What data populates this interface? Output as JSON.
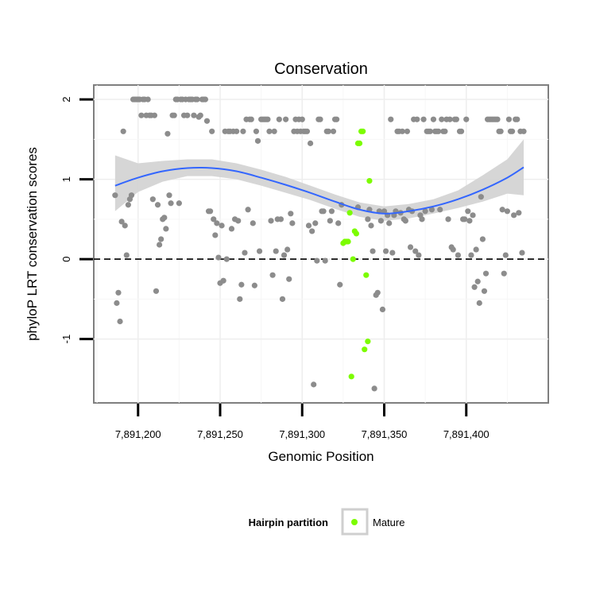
{
  "chart_data": {
    "type": "scatter",
    "title": "Conservation",
    "xlabel": "Genomic Position",
    "ylabel": "phyloP LRT conservation scores",
    "xlim": [
      7891173,
      7891450
    ],
    "ylim": [
      -1.8,
      2.18
    ],
    "x_ticks": [
      7891200,
      7891250,
      7891300,
      7891350,
      7891400
    ],
    "x_tick_labels": [
      "7,891,200",
      "7,891,250",
      "7,891,300",
      "7,891,350",
      "7,891,400"
    ],
    "y_ticks": [
      -1,
      0,
      1,
      2
    ],
    "y_tick_labels": [
      "-1",
      "0",
      "1",
      "2"
    ],
    "reference_line": {
      "y": 0,
      "style": "dashed"
    },
    "grid": true,
    "legend": {
      "title": "Hairpin partition",
      "position": "bottom",
      "entries": [
        {
          "label": "Mature",
          "color": "#7cfc00"
        }
      ]
    },
    "colors": {
      "other": "#8c8c8c",
      "mature": "#7cfc00",
      "smooth": "#3366ff",
      "band": "#d2d2d2"
    },
    "series": [
      {
        "color": "#8c8c8c",
        "points": [
          [
            7891186,
            0.8
          ],
          [
            7891187,
            -0.55
          ],
          [
            7891188,
            -0.42
          ],
          [
            7891189,
            -0.78
          ],
          [
            7891190,
            0.47
          ],
          [
            7891191,
            1.6
          ],
          [
            7891192,
            0.42
          ],
          [
            7891193,
            0.05
          ],
          [
            7891194,
            0.68
          ],
          [
            7891195,
            0.75
          ],
          [
            7891196,
            0.8
          ],
          [
            7891197,
            2.0
          ],
          [
            7891198,
            2.0
          ],
          [
            7891199,
            2.0
          ],
          [
            7891200,
            2.0
          ],
          [
            7891201,
            2.0
          ],
          [
            7891202,
            1.8
          ],
          [
            7891203,
            2.0
          ],
          [
            7891204,
            2.0
          ],
          [
            7891205,
            1.8
          ],
          [
            7891206,
            2.0
          ],
          [
            7891207,
            1.8
          ],
          [
            7891208,
            1.8
          ],
          [
            7891209,
            0.75
          ],
          [
            7891210,
            1.8
          ],
          [
            7891211,
            -0.4
          ],
          [
            7891212,
            0.68
          ],
          [
            7891213,
            0.18
          ],
          [
            7891214,
            0.25
          ],
          [
            7891215,
            0.5
          ],
          [
            7891216,
            0.52
          ],
          [
            7891217,
            0.38
          ],
          [
            7891218,
            1.57
          ],
          [
            7891219,
            0.8
          ],
          [
            7891220,
            0.7
          ],
          [
            7891221,
            1.8
          ],
          [
            7891222,
            1.8
          ],
          [
            7891223,
            2.0
          ],
          [
            7891224,
            2.0
          ],
          [
            7891225,
            0.7
          ],
          [
            7891226,
            2.0
          ],
          [
            7891227,
            2.0
          ],
          [
            7891228,
            1.8
          ],
          [
            7891229,
            2.0
          ],
          [
            7891230,
            1.8
          ],
          [
            7891231,
            2.0
          ],
          [
            7891232,
            2.0
          ],
          [
            7891233,
            2.0
          ],
          [
            7891234,
            1.8
          ],
          [
            7891235,
            2.0
          ],
          [
            7891236,
            2.0
          ],
          [
            7891237,
            1.78
          ],
          [
            7891238,
            1.8
          ],
          [
            7891239,
            2.0
          ],
          [
            7891240,
            2.0
          ],
          [
            7891241,
            2.0
          ],
          [
            7891242,
            1.73
          ],
          [
            7891243,
            0.6
          ],
          [
            7891244,
            0.6
          ],
          [
            7891245,
            1.6
          ],
          [
            7891246,
            0.5
          ],
          [
            7891247,
            0.3
          ],
          [
            7891248,
            0.45
          ],
          [
            7891249,
            0.02
          ],
          [
            7891250,
            -0.3
          ],
          [
            7891251,
            0.42
          ],
          [
            7891252,
            -0.27
          ],
          [
            7891253,
            1.6
          ],
          [
            7891254,
            0.0
          ],
          [
            7891255,
            1.6
          ],
          [
            7891256,
            1.6
          ],
          [
            7891257,
            0.38
          ],
          [
            7891258,
            1.6
          ],
          [
            7891259,
            0.5
          ],
          [
            7891260,
            1.6
          ],
          [
            7891261,
            0.48
          ],
          [
            7891262,
            -0.5
          ],
          [
            7891263,
            -0.32
          ],
          [
            7891264,
            1.6
          ],
          [
            7891265,
            0.08
          ],
          [
            7891266,
            1.75
          ],
          [
            7891267,
            0.62
          ],
          [
            7891268,
            1.75
          ],
          [
            7891269,
            1.75
          ],
          [
            7891270,
            0.45
          ],
          [
            7891271,
            -0.33
          ],
          [
            7891272,
            1.6
          ],
          [
            7891273,
            1.48
          ],
          [
            7891274,
            0.1
          ],
          [
            7891275,
            1.75
          ],
          [
            7891276,
            1.75
          ],
          [
            7891277,
            1.75
          ],
          [
            7891278,
            1.75
          ],
          [
            7891279,
            1.75
          ],
          [
            7891280,
            1.6
          ],
          [
            7891281,
            0.48
          ],
          [
            7891282,
            -0.2
          ],
          [
            7891283,
            1.6
          ],
          [
            7891284,
            0.1
          ],
          [
            7891285,
            0.5
          ],
          [
            7891286,
            1.75
          ],
          [
            7891287,
            0.5
          ],
          [
            7891288,
            -0.5
          ],
          [
            7891289,
            0.05
          ],
          [
            7891290,
            1.75
          ],
          [
            7891291,
            0.12
          ],
          [
            7891292,
            -0.25
          ],
          [
            7891293,
            0.57
          ],
          [
            7891294,
            0.45
          ],
          [
            7891295,
            1.6
          ],
          [
            7891296,
            1.75
          ],
          [
            7891297,
            1.6
          ],
          [
            7891298,
            1.75
          ],
          [
            7891299,
            1.6
          ],
          [
            7891300,
            1.75
          ],
          [
            7891301,
            1.6
          ],
          [
            7891302,
            1.6
          ],
          [
            7891303,
            1.6
          ],
          [
            7891304,
            0.42
          ],
          [
            7891305,
            1.45
          ],
          [
            7891306,
            0.35
          ],
          [
            7891307,
            -1.57
          ],
          [
            7891308,
            0.45
          ],
          [
            7891309,
            -0.02
          ],
          [
            7891310,
            1.75
          ],
          [
            7891311,
            1.75
          ],
          [
            7891312,
            0.6
          ],
          [
            7891313,
            0.6
          ],
          [
            7891314,
            -0.02
          ],
          [
            7891315,
            1.6
          ],
          [
            7891316,
            1.6
          ],
          [
            7891317,
            0.48
          ],
          [
            7891318,
            0.6
          ],
          [
            7891319,
            1.6
          ],
          [
            7891320,
            1.75
          ],
          [
            7891321,
            1.75
          ],
          [
            7891322,
            0.45
          ],
          [
            7891323,
            -0.32
          ],
          [
            7891324,
            0.68
          ],
          [
            7891334,
            0.65
          ],
          [
            7891340,
            0.5
          ],
          [
            7891341,
            0.62
          ],
          [
            7891342,
            0.42
          ],
          [
            7891343,
            0.1
          ],
          [
            7891344,
            -1.62
          ],
          [
            7891345,
            -0.45
          ],
          [
            7891346,
            -0.42
          ],
          [
            7891347,
            0.6
          ],
          [
            7891348,
            0.48
          ],
          [
            7891349,
            -0.63
          ],
          [
            7891350,
            0.6
          ],
          [
            7891351,
            0.1
          ],
          [
            7891352,
            0.55
          ],
          [
            7891353,
            0.45
          ],
          [
            7891354,
            1.75
          ],
          [
            7891355,
            0.08
          ],
          [
            7891356,
            0.55
          ],
          [
            7891357,
            0.6
          ],
          [
            7891358,
            1.6
          ],
          [
            7891359,
            1.6
          ],
          [
            7891360,
            0.58
          ],
          [
            7891361,
            1.6
          ],
          [
            7891362,
            0.5
          ],
          [
            7891363,
            0.48
          ],
          [
            7891364,
            1.6
          ],
          [
            7891365,
            0.62
          ],
          [
            7891366,
            0.15
          ],
          [
            7891367,
            0.6
          ],
          [
            7891368,
            1.75
          ],
          [
            7891369,
            0.1
          ],
          [
            7891370,
            1.75
          ],
          [
            7891371,
            0.05
          ],
          [
            7891372,
            0.55
          ],
          [
            7891373,
            0.5
          ],
          [
            7891374,
            1.75
          ],
          [
            7891375,
            0.6
          ],
          [
            7891376,
            1.6
          ],
          [
            7891377,
            1.6
          ],
          [
            7891378,
            1.6
          ],
          [
            7891379,
            0.62
          ],
          [
            7891380,
            1.75
          ],
          [
            7891381,
            1.6
          ],
          [
            7891382,
            1.6
          ],
          [
            7891383,
            1.6
          ],
          [
            7891384,
            0.62
          ],
          [
            7891385,
            1.75
          ],
          [
            7891386,
            1.6
          ],
          [
            7891387,
            1.6
          ],
          [
            7891388,
            1.75
          ],
          [
            7891389,
            0.5
          ],
          [
            7891390,
            1.75
          ],
          [
            7891391,
            0.15
          ],
          [
            7891392,
            0.12
          ],
          [
            7891393,
            1.75
          ],
          [
            7891394,
            1.75
          ],
          [
            7891395,
            0.05
          ],
          [
            7891396,
            1.6
          ],
          [
            7891397,
            1.6
          ],
          [
            7891398,
            0.5
          ],
          [
            7891399,
            0.5
          ],
          [
            7891400,
            1.75
          ],
          [
            7891401,
            0.6
          ],
          [
            7891402,
            0.48
          ],
          [
            7891403,
            0.05
          ],
          [
            7891404,
            0.55
          ],
          [
            7891405,
            -0.35
          ],
          [
            7891406,
            0.12
          ],
          [
            7891407,
            -0.28
          ],
          [
            7891408,
            -0.55
          ],
          [
            7891409,
            0.78
          ],
          [
            7891410,
            0.25
          ],
          [
            7891411,
            -0.4
          ],
          [
            7891412,
            -0.18
          ],
          [
            7891413,
            1.75
          ],
          [
            7891414,
            1.75
          ],
          [
            7891415,
            1.75
          ],
          [
            7891416,
            1.75
          ],
          [
            7891417,
            1.75
          ],
          [
            7891418,
            1.75
          ],
          [
            7891419,
            1.75
          ],
          [
            7891420,
            1.6
          ],
          [
            7891421,
            1.6
          ],
          [
            7891422,
            0.62
          ],
          [
            7891423,
            -0.18
          ],
          [
            7891424,
            0.05
          ],
          [
            7891425,
            0.6
          ],
          [
            7891426,
            1.75
          ],
          [
            7891427,
            1.6
          ],
          [
            7891428,
            1.6
          ],
          [
            7891429,
            0.55
          ],
          [
            7891430,
            1.75
          ],
          [
            7891431,
            1.75
          ],
          [
            7891432,
            0.58
          ],
          [
            7891433,
            1.6
          ],
          [
            7891434,
            0.08
          ],
          [
            7891435,
            1.6
          ]
        ]
      },
      {
        "name": "Mature",
        "color": "#7cfc00",
        "points": [
          [
            7891325,
            0.2
          ],
          [
            7891326,
            0.22
          ],
          [
            7891327,
            0.22
          ],
          [
            7891328,
            0.22
          ],
          [
            7891329,
            0.58
          ],
          [
            7891330,
            -1.47
          ],
          [
            7891331,
            0.0
          ],
          [
            7891332,
            0.35
          ],
          [
            7891333,
            0.32
          ],
          [
            7891334,
            1.45
          ],
          [
            7891335,
            1.45
          ],
          [
            7891336,
            1.6
          ],
          [
            7891337,
            1.6
          ],
          [
            7891338,
            -1.13
          ],
          [
            7891339,
            -0.2
          ],
          [
            7891340,
            -1.03
          ],
          [
            7891341,
            0.98
          ]
        ]
      }
    ],
    "smooth": {
      "x": [
        7891186,
        7891200,
        7891215,
        7891230,
        7891245,
        7891260,
        7891275,
        7891290,
        7891305,
        7891320,
        7891335,
        7891350,
        7891365,
        7891380,
        7891395,
        7891410,
        7891425,
        7891435
      ],
      "y": [
        0.92,
        1.02,
        1.1,
        1.14,
        1.14,
        1.1,
        1.02,
        0.93,
        0.83,
        0.72,
        0.62,
        0.57,
        0.6,
        0.66,
        0.75,
        0.87,
        1.02,
        1.15
      ],
      "lower": [
        0.6,
        0.84,
        0.97,
        1.04,
        1.04,
        1.0,
        0.92,
        0.83,
        0.74,
        0.63,
        0.53,
        0.48,
        0.51,
        0.57,
        0.64,
        0.72,
        0.82,
        0.8
      ],
      "upper": [
        1.3,
        1.2,
        1.23,
        1.25,
        1.25,
        1.2,
        1.12,
        1.03,
        0.92,
        0.81,
        0.71,
        0.66,
        0.69,
        0.75,
        0.86,
        1.05,
        1.25,
        1.5
      ]
    }
  }
}
